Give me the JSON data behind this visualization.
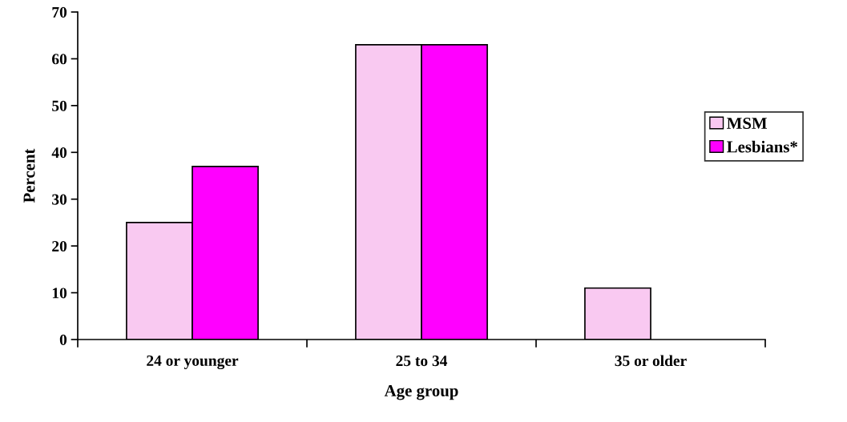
{
  "chart_data": {
    "type": "bar",
    "xlabel": "Age group",
    "ylabel": "Percent",
    "categories": [
      "24 or younger",
      "25 to 34",
      "35 or older"
    ],
    "series": [
      {
        "name": "MSM",
        "color": "#f9c9f1",
        "values": [
          25,
          63,
          11
        ]
      },
      {
        "name": "Lesbians*",
        "color": "#ff00ff",
        "values": [
          37,
          63,
          null
        ]
      }
    ],
    "ylim": [
      0,
      70
    ],
    "yticks": [
      0,
      10,
      20,
      30,
      40,
      50,
      60,
      70
    ],
    "grid": false,
    "legend": "right"
  }
}
